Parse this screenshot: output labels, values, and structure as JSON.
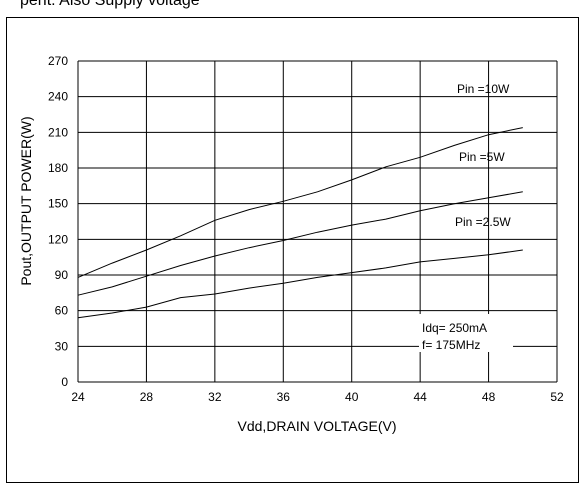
{
  "header_fragment": "pent. Also Supply voltage",
  "chart_data": {
    "type": "line",
    "xlabel": "Vdd,DRAIN VOLTAGE(V)",
    "ylabel": "Pout,OUTPUT POWER(W)",
    "xlim": [
      24,
      52
    ],
    "ylim": [
      0,
      270
    ],
    "xticks": [
      24,
      28,
      32,
      36,
      40,
      44,
      48,
      52
    ],
    "yticks": [
      0,
      30,
      60,
      90,
      120,
      150,
      180,
      210,
      240,
      270
    ],
    "grid": true,
    "series": [
      {
        "name": "Pin =10W",
        "x": [
          24,
          26,
          28,
          30,
          32,
          34,
          36,
          38,
          40,
          42,
          44,
          46,
          48,
          50
        ],
        "y": [
          88,
          100,
          111,
          123,
          136,
          145,
          152,
          160,
          170,
          181,
          189,
          199,
          208,
          214
        ]
      },
      {
        "name": "Pin =5W",
        "x": [
          24,
          26,
          28,
          30,
          32,
          34,
          36,
          38,
          40,
          42,
          44,
          46,
          48,
          50
        ],
        "y": [
          73,
          80,
          89,
          98,
          106,
          113,
          119,
          126,
          132,
          137,
          144,
          150,
          155,
          160
        ]
      },
      {
        "name": "Pin =2.5W",
        "x": [
          24,
          26,
          28,
          30,
          32,
          34,
          36,
          38,
          40,
          42,
          44,
          46,
          48,
          50
        ],
        "y": [
          54,
          58,
          63,
          71,
          74,
          79,
          83,
          88,
          92,
          96,
          101,
          104,
          107,
          111
        ]
      }
    ],
    "annotations": [
      "Idq= 250mA",
      "f= 175MHz"
    ]
  }
}
